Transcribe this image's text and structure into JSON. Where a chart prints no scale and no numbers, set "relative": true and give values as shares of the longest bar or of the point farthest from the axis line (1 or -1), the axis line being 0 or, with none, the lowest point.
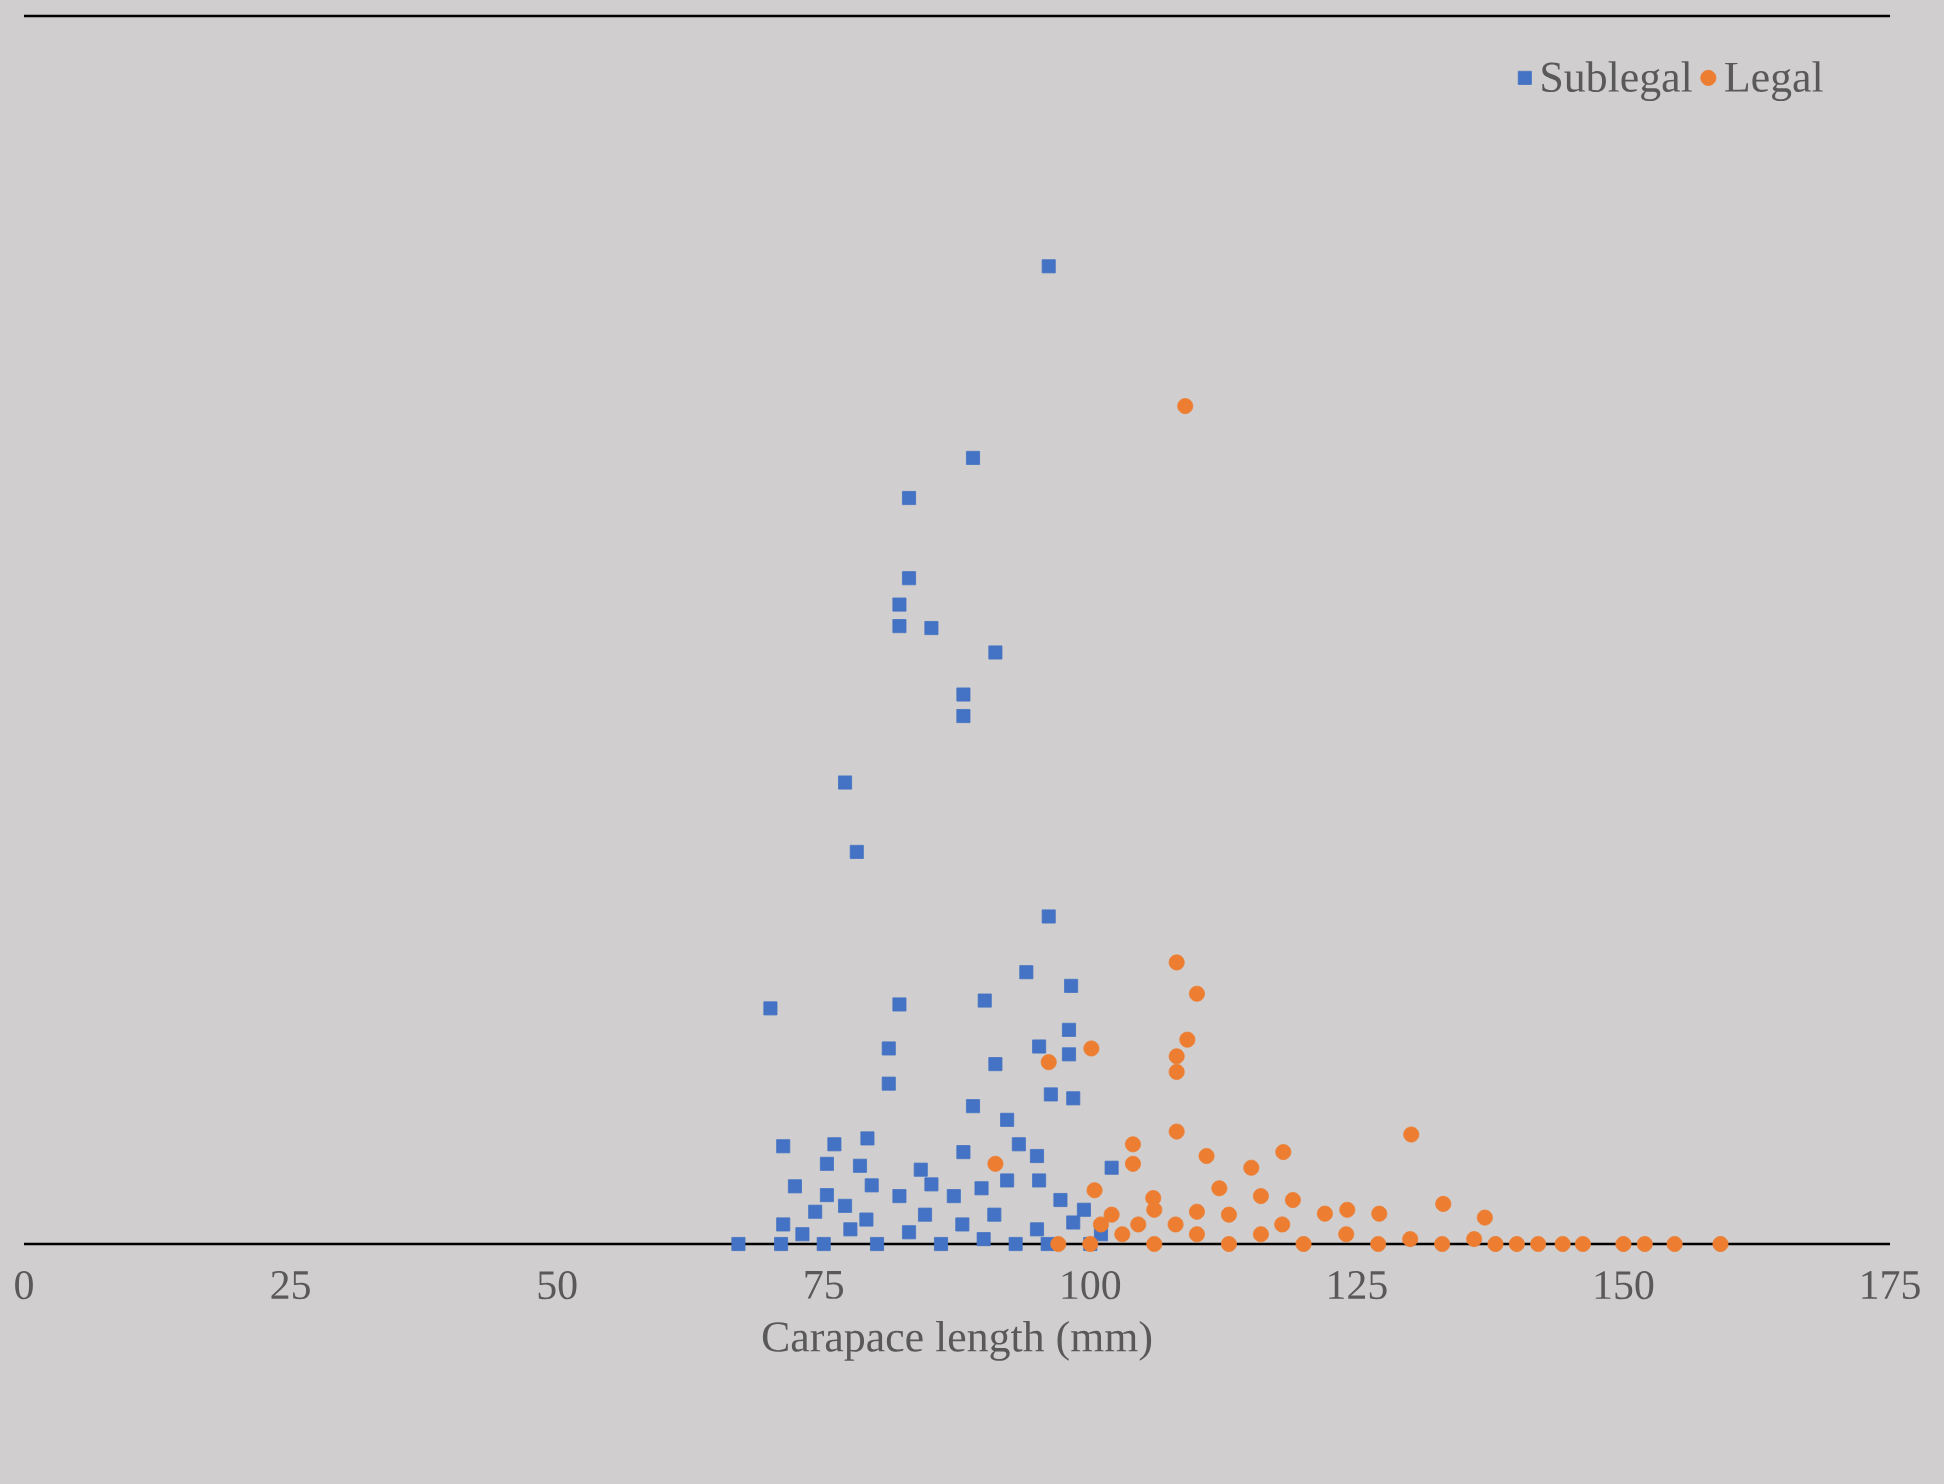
{
  "chart_data": {
    "type": "scatter",
    "relative": true,
    "xlabel": "Carapace length (mm)",
    "xlim": [
      0,
      175
    ],
    "xticks": [
      0,
      25,
      50,
      75,
      100,
      125,
      150,
      175
    ],
    "legend": "top right",
    "series": [
      {
        "name": "Sublegal",
        "color": "#4472c4",
        "marker": "square",
        "x": [
          96.1,
          89,
          83,
          83,
          82.1,
          82.1,
          85.1,
          91.1,
          88.1,
          88.1,
          77,
          78.1,
          96.1,
          70,
          94,
          98.2,
          90.1,
          82.1,
          98,
          95.2,
          91.1,
          81.1,
          81.1,
          98,
          96.3,
          98.4,
          89,
          92.2,
          71.2,
          76,
          79.1,
          93.3,
          88.1,
          95,
          84.1,
          72.3,
          75.3,
          78.4,
          102,
          67,
          71.2,
          74.2,
          75.3,
          77,
          79.5,
          82.1,
          85.1,
          87.2,
          89.8,
          92.2,
          95.2,
          97.2,
          99.4,
          98.4,
          73,
          75,
          77.5,
          80,
          83,
          86,
          88,
          90,
          93,
          95,
          96,
          100,
          71,
          79,
          84.5,
          91,
          101
        ],
        "values": [
          1.0,
          0.804,
          0.763,
          0.681,
          0.654,
          0.632,
          0.63,
          0.605,
          0.562,
          0.54,
          0.472,
          0.401,
          0.335,
          0.241,
          0.278,
          0.264,
          0.249,
          0.245,
          0.219,
          0.202,
          0.184,
          0.2,
          0.164,
          0.194,
          0.153,
          0.149,
          0.141,
          0.127,
          0.1,
          0.102,
          0.108,
          0.102,
          0.094,
          0.09,
          0.076,
          0.059,
          0.082,
          0.08,
          0.078,
          0,
          0.02,
          0.033,
          0.05,
          0.039,
          0.06,
          0.049,
          0.061,
          0.049,
          0.057,
          0.065,
          0.065,
          0.045,
          0.035,
          0.022,
          0.01,
          0,
          0.015,
          0,
          0.012,
          0,
          0.02,
          0.005,
          0,
          0.015,
          0,
          0,
          0,
          0.025,
          0.03,
          0.03,
          0.01
        ]
      },
      {
        "name": "Legal",
        "color": "#ed7d31",
        "marker": "circle",
        "x": [
          108.9,
          108.1,
          110,
          109.1,
          108.1,
          108.1,
          100.1,
          96.1,
          130.1,
          108.1,
          104,
          104,
          110.9,
          115.1,
          118.1,
          91.1,
          100.4,
          105.9,
          112.1,
          116,
          119,
          133.1,
          122,
          124.1,
          127.1,
          137,
          102,
          106,
          110,
          113,
          97,
          100,
          103,
          106,
          110,
          113,
          116,
          120,
          124,
          127,
          130,
          133,
          136,
          138,
          140,
          142,
          144.3,
          146.2,
          150,
          152,
          154.8,
          159.1,
          101,
          104.5,
          108,
          118
        ],
        "values": [
          0.857,
          0.288,
          0.256,
          0.209,
          0.192,
          0.176,
          0.2,
          0.186,
          0.112,
          0.115,
          0.102,
          0.082,
          0.09,
          0.078,
          0.094,
          0.082,
          0.055,
          0.047,
          0.057,
          0.049,
          0.045,
          0.041,
          0.031,
          0.035,
          0.031,
          0.027,
          0.03,
          0.035,
          0.033,
          0.03,
          0,
          0,
          0.01,
          0,
          0.01,
          0,
          0.01,
          0,
          0.01,
          0,
          0.005,
          0,
          0.005,
          0,
          0,
          0,
          0,
          0,
          0,
          0,
          0,
          0,
          0.02,
          0.02,
          0.02,
          0.02
        ]
      }
    ]
  }
}
